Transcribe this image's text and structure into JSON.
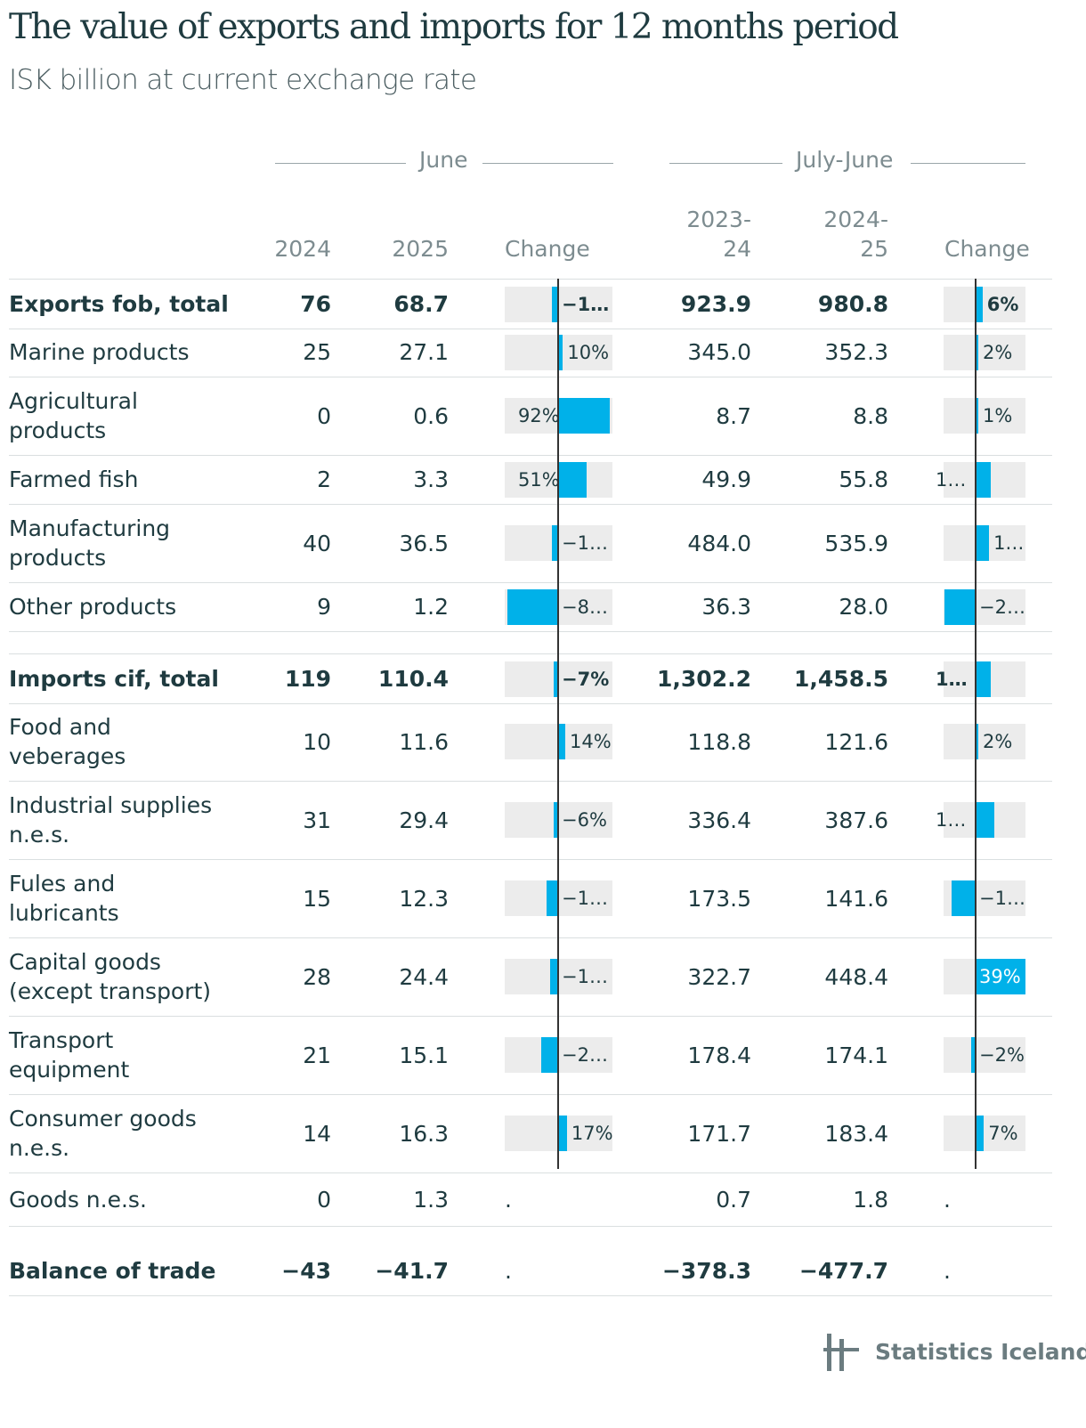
{
  "title": "The value of exports and imports for 12 months period",
  "subtitle": "ISK billion at current exchange rate",
  "brand": {
    "name": "Statistics Iceland",
    "icon": "statistics-iceland-logo-icon"
  },
  "colors": {
    "bar": "#00b1e9",
    "track": "#ececec",
    "text": "#1f3b40",
    "muted": "#7d8c90"
  },
  "groups": {
    "june": "June",
    "ytd": "July-June"
  },
  "columns": {
    "june_2024": "2024",
    "june_2025": "2025",
    "june_change": "Change",
    "ytd_prev_line1": "2023-",
    "ytd_prev_line2": "24",
    "ytd_cur_line1": "2024-",
    "ytd_cur_line2": "25",
    "ytd_change": "Change"
  },
  "rows": [
    {
      "label": "Exports fob, total",
      "bold": true,
      "june_2024": "76",
      "june_2025": "68.7",
      "june_change": -10,
      "june_change_label": "−1…",
      "ytd_prev": "923.9",
      "ytd_cur": "980.8",
      "ytd_change": 6,
      "ytd_change_label": "6%"
    },
    {
      "label": "Marine products",
      "bold": false,
      "june_2024": "25",
      "june_2025": "27.1",
      "june_change": 10,
      "june_change_label": "10%",
      "ytd_prev": "345.0",
      "ytd_cur": "352.3",
      "ytd_change": 2,
      "ytd_change_label": "2%"
    },
    {
      "label": "Agricultural products",
      "bold": false,
      "june_2024": "0",
      "june_2025": "0.6",
      "june_change": 92,
      "june_change_label": "92%",
      "ytd_prev": "8.7",
      "ytd_cur": "8.8",
      "ytd_change": 1,
      "ytd_change_label": "1%"
    },
    {
      "label": "Farmed fish",
      "bold": false,
      "june_2024": "2",
      "june_2025": "3.3",
      "june_change": 51,
      "june_change_label": "51%",
      "ytd_prev": "49.9",
      "ytd_cur": "55.8",
      "ytd_change": 12,
      "ytd_change_label": "1…"
    },
    {
      "label": "Manufacturing products",
      "bold": false,
      "june_2024": "40",
      "june_2025": "36.5",
      "june_change": -10,
      "june_change_label": "−1…",
      "ytd_prev": "484.0",
      "ytd_cur": "535.9",
      "ytd_change": 11,
      "ytd_change_label": "1…"
    },
    {
      "label": "Other products",
      "bold": false,
      "june_2024": "9",
      "june_2025": "1.2",
      "june_change": -87,
      "june_change_label": "−8…",
      "ytd_prev": "36.3",
      "ytd_cur": "28.0",
      "ytd_change": -23,
      "ytd_change_label": "−2…"
    },
    {
      "label": "Imports cif, total",
      "bold": true,
      "june_2024": "119",
      "june_2025": "110.4",
      "june_change": -7,
      "june_change_label": "−7%",
      "ytd_prev": "1,302.2",
      "ytd_cur": "1,458.5",
      "ytd_change": 12,
      "ytd_change_label": "1…"
    },
    {
      "label": "Food and veberages",
      "bold": false,
      "june_2024": "10",
      "june_2025": "11.6",
      "june_change": 14,
      "june_change_label": "14%",
      "ytd_prev": "118.8",
      "ytd_cur": "121.6",
      "ytd_change": 2,
      "ytd_change_label": "2%"
    },
    {
      "label": "Industrial supplies n.e.s.",
      "bold": false,
      "june_2024": "31",
      "june_2025": "29.4",
      "june_change": -6,
      "june_change_label": "−6%",
      "ytd_prev": "336.4",
      "ytd_cur": "387.6",
      "ytd_change": 15,
      "ytd_change_label": "1…"
    },
    {
      "label": "Fules and lubricants",
      "bold": false,
      "june_2024": "15",
      "june_2025": "12.3",
      "june_change": -18,
      "june_change_label": "−1…",
      "ytd_prev": "173.5",
      "ytd_cur": "141.6",
      "ytd_change": -18,
      "ytd_change_label": "−1…"
    },
    {
      "label": "Capital goods (except transport)",
      "bold": false,
      "june_2024": "28",
      "june_2025": "24.4",
      "june_change": -13,
      "june_change_label": "−1…",
      "ytd_prev": "322.7",
      "ytd_cur": "448.4",
      "ytd_change": 39,
      "ytd_change_label": "39%"
    },
    {
      "label": "Transport equipment",
      "bold": false,
      "june_2024": "21",
      "june_2025": "15.1",
      "june_change": -28,
      "june_change_label": "−2…",
      "ytd_prev": "178.4",
      "ytd_cur": "174.1",
      "ytd_change": -2,
      "ytd_change_label": "−2%"
    },
    {
      "label": "Consumer goods n.e.s.",
      "bold": false,
      "june_2024": "14",
      "june_2025": "16.3",
      "june_change": 17,
      "june_change_label": "17%",
      "ytd_prev": "171.7",
      "ytd_cur": "183.4",
      "ytd_change": 7,
      "ytd_change_label": "7%"
    },
    {
      "label": "Goods n.e.s.",
      "bold": false,
      "june_2024": "0",
      "june_2025": "1.3",
      "june_change": null,
      "june_change_label": ".",
      "ytd_prev": "0.7",
      "ytd_cur": "1.8",
      "ytd_change": null,
      "ytd_change_label": "."
    },
    {
      "label": "Balance of trade",
      "bold": true,
      "june_2024": "−43",
      "june_2025": "−41.7",
      "june_change": null,
      "june_change_label": ".",
      "ytd_prev": "−378.3",
      "ytd_cur": "−477.7",
      "ytd_change": null,
      "ytd_change_label": "."
    }
  ],
  "chart_data": {
    "type": "table",
    "title": "The value of exports and imports for 12 months period",
    "subtitle": "ISK billion at current exchange rate",
    "column_groups": [
      "June",
      "July-June"
    ],
    "columns": [
      "2024",
      "2025",
      "Change",
      "2023-24",
      "2024-25",
      "Change"
    ],
    "rows": [
      "Exports fob, total",
      "Marine products",
      "Agricultural products",
      "Farmed fish",
      "Manufacturing products",
      "Other products",
      "Imports cif, total",
      "Food and veberages",
      "Industrial supplies n.e.s.",
      "Fules and lubricants",
      "Capital goods (except transport)",
      "Transport equipment",
      "Consumer goods n.e.s.",
      "Goods n.e.s.",
      "Balance of trade"
    ],
    "june_2024": [
      76,
      25,
      0,
      2,
      40,
      9,
      119,
      10,
      31,
      15,
      28,
      21,
      14,
      0,
      -43
    ],
    "june_2025": [
      68.7,
      27.1,
      0.6,
      3.3,
      36.5,
      1.2,
      110.4,
      11.6,
      29.4,
      12.3,
      24.4,
      15.1,
      16.3,
      1.3,
      -41.7
    ],
    "june_change_pct": [
      -10,
      10,
      92,
      51,
      -10,
      -87,
      -7,
      14,
      -6,
      -18,
      -13,
      -28,
      17,
      null,
      null
    ],
    "ytd_2023_24": [
      923.9,
      345.0,
      8.7,
      49.9,
      484.0,
      36.3,
      1302.2,
      118.8,
      336.4,
      173.5,
      322.7,
      178.4,
      171.7,
      0.7,
      -378.3
    ],
    "ytd_2024_25": [
      980.8,
      352.3,
      8.8,
      55.8,
      535.9,
      28.0,
      1458.5,
      121.6,
      387.6,
      141.6,
      448.4,
      174.1,
      183.4,
      1.8,
      -477.7
    ],
    "ytd_change_pct": [
      6,
      2,
      1,
      12,
      11,
      -23,
      12,
      2,
      15,
      -18,
      39,
      -2,
      7,
      null,
      null
    ]
  }
}
